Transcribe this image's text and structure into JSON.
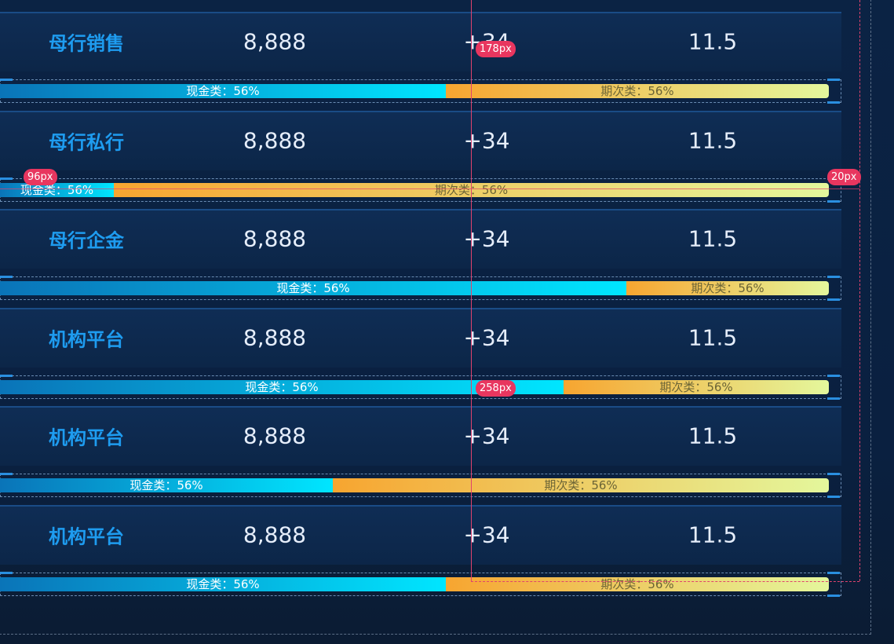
{
  "rows": [
    {
      "label": "母行销售",
      "value": "8,888",
      "change": "+34",
      "rate": "11.5",
      "cash": "现金类：56%",
      "installment": "期次类：56%"
    },
    {
      "label": "母行私行",
      "value": "8,888",
      "change": "+34",
      "rate": "11.5",
      "cash": "现金类：56%",
      "installment": "期次类：56%"
    },
    {
      "label": "母行企金",
      "value": "8,888",
      "change": "+34",
      "rate": "11.5",
      "cash": "现金类：56%",
      "installment": "期次类：56%"
    },
    {
      "label": "机构平台",
      "value": "8,888",
      "change": "+34",
      "rate": "11.5",
      "cash": "现金类：56%",
      "installment": "期次类：56%"
    },
    {
      "label": "机构平台",
      "value": "8,888",
      "change": "+34",
      "rate": "11.5",
      "cash": "现金类：56%",
      "installment": "期次类：56%"
    },
    {
      "label": "机构平台",
      "value": "8,888",
      "change": "+34",
      "rate": "11.5",
      "cash": "现金类：56%",
      "installment": "期次类：56%"
    }
  ],
  "annotations": [
    "178px",
    "96px",
    "20px",
    "258px"
  ]
}
